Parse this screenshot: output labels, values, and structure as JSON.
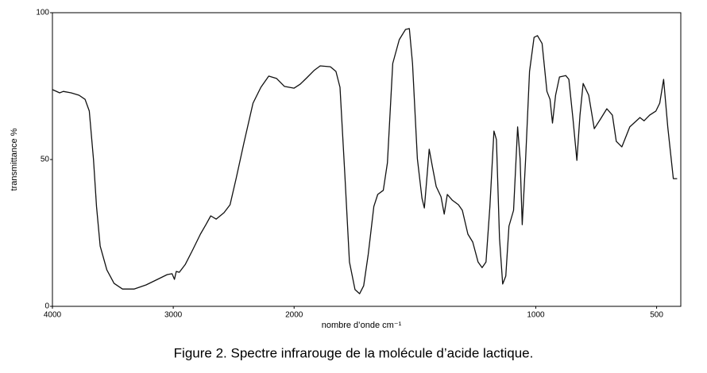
{
  "chart_data": {
    "type": "line",
    "xlabel": "nombre d’onde cm⁻¹",
    "ylabel": "transmittance %",
    "caption": "Figure 2. Spectre infrarouge de la molécule d’acide lactique.",
    "x_scale_change": 2000,
    "xlim": [
      4000,
      400
    ],
    "xticks": [
      4000,
      3000,
      2000,
      1000,
      500
    ],
    "ylim": [
      0,
      100
    ],
    "yticks": [
      0,
      50,
      100
    ],
    "color": "#111111",
    "x": [
      4000,
      3940,
      3910,
      3845,
      3780,
      3730,
      3695,
      3660,
      3635,
      3605,
      3550,
      3490,
      3420,
      3325,
      3225,
      3130,
      3050,
      3010,
      2990,
      2975,
      2950,
      2900,
      2840,
      2775,
      2730,
      2690,
      2645,
      2580,
      2530,
      2480,
      2415,
      2340,
      2275,
      2210,
      2145,
      2080,
      2000,
      1974,
      1948,
      1918,
      1892,
      1850,
      1827,
      1810,
      1790,
      1771,
      1748,
      1729,
      1712,
      1693,
      1670,
      1654,
      1631,
      1614,
      1592,
      1565,
      1539,
      1523,
      1510,
      1490,
      1471,
      1461,
      1451,
      1441,
      1428,
      1412,
      1392,
      1379,
      1366,
      1346,
      1320,
      1304,
      1281,
      1261,
      1239,
      1222,
      1206,
      1190,
      1173,
      1163,
      1150,
      1137,
      1124,
      1111,
      1092,
      1075,
      1065,
      1056,
      1042,
      1026,
      1007,
      993,
      974,
      954,
      941,
      931,
      918,
      902,
      876,
      863,
      846,
      830,
      817,
      804,
      781,
      758,
      732,
      706,
      683,
      667,
      644,
      611,
      569,
      552,
      529,
      503,
      487,
      471,
      454,
      431,
      415
    ],
    "values": [
      73.8,
      72.7,
      73.2,
      72.7,
      71.9,
      70.5,
      66.5,
      50,
      34,
      20.5,
      12.4,
      7.8,
      5.9,
      5.9,
      7.3,
      9.2,
      10.8,
      11.1,
      9.2,
      11.9,
      11.6,
      14.3,
      19.2,
      24.6,
      27.8,
      30.8,
      29.7,
      31.9,
      34.6,
      43.5,
      55.7,
      69.2,
      74.6,
      78.4,
      77.6,
      74.9,
      74.3,
      75.7,
      77.8,
      80.3,
      81.9,
      81.6,
      80,
      74.6,
      44.9,
      15.1,
      5.7,
      4.3,
      7,
      17.8,
      34,
      38.1,
      39.5,
      48.9,
      82.7,
      90.8,
      94.3,
      94.6,
      82.7,
      50.3,
      36.8,
      33.5,
      43.5,
      53.5,
      47.6,
      40.8,
      37.3,
      31.4,
      38.1,
      36.2,
      34.6,
      32.7,
      24.6,
      21.9,
      15.1,
      13.2,
      15.1,
      34,
      59.7,
      56.8,
      23.2,
      7.6,
      10.3,
      27.3,
      32.7,
      61.1,
      50.3,
      27.8,
      50.3,
      80,
      91.6,
      92.2,
      89.5,
      73.2,
      70.5,
      62.4,
      71.9,
      78.1,
      78.6,
      77.3,
      63.8,
      49.7,
      65.1,
      75.9,
      71.9,
      60.5,
      63.8,
      67.3,
      65.1,
      56.2,
      54.3,
      61.1,
      64.3,
      63.2,
      65.1,
      66.5,
      69.2,
      77.3,
      61.1,
      43.5,
      43.5
    ]
  }
}
